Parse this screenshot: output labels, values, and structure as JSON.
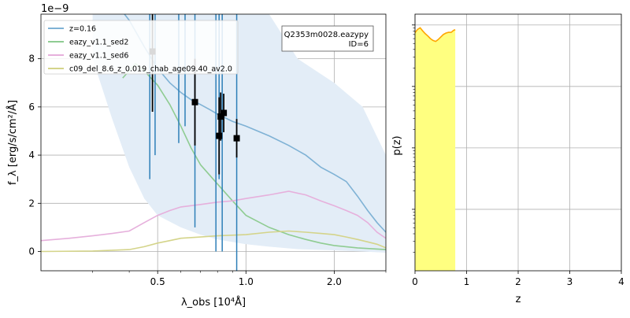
{
  "chart_data": [
    {
      "type": "line",
      "scale_label": "1e−9",
      "xlabel": "λ_obs [10⁴Å]",
      "ylabel": "f_λ [erg/s/cm²/Å]",
      "xscale": "log",
      "xlim": [
        0.2,
        3.0
      ],
      "ylim": [
        -0.8,
        9.85
      ],
      "xticks": [
        0.5,
        1.0,
        2.0
      ],
      "xtick_labels": [
        "0.5",
        "1.0",
        "2.0"
      ],
      "yticks": [
        0,
        2,
        4,
        6,
        8
      ],
      "ytick_labels": [
        "0",
        "2",
        "4",
        "6",
        "8"
      ],
      "grid": true,
      "legend_position": "top-left",
      "annotation": [
        "Q2353m0028.eazypy",
        "ID=6"
      ],
      "annotation_position": "top-right",
      "series": [
        {
          "name": "z=0.16",
          "color": "#7fb2d5",
          "x": [
            0.35,
            0.4,
            0.45,
            0.5,
            0.55,
            0.6,
            0.65,
            0.7,
            0.75,
            0.8,
            0.9,
            1.0,
            1.2,
            1.4,
            1.6,
            1.8,
            2.0,
            2.2,
            2.4,
            2.6,
            2.8,
            3.0
          ],
          "values": [
            10.5,
            9.6,
            8.5,
            7.6,
            7.0,
            6.6,
            6.3,
            6.1,
            5.9,
            5.7,
            5.4,
            5.2,
            4.8,
            4.4,
            4.0,
            3.5,
            3.2,
            2.9,
            2.3,
            1.7,
            1.2,
            0.8
          ]
        },
        {
          "name": "eazy_v1.1_sed2",
          "color": "#8fcc92",
          "x": [
            0.38,
            0.4,
            0.42,
            0.45,
            0.5,
            0.55,
            0.6,
            0.65,
            0.7,
            0.8,
            0.9,
            1.0,
            1.2,
            1.4,
            1.6,
            1.8,
            2.0,
            2.4,
            3.0
          ],
          "values": [
            7.2,
            7.5,
            7.8,
            7.5,
            6.9,
            6.1,
            5.2,
            4.3,
            3.6,
            2.8,
            2.1,
            1.5,
            1.0,
            0.7,
            0.5,
            0.35,
            0.25,
            0.15,
            0.08
          ]
        },
        {
          "name": "eazy_v1.1_sed6",
          "color": "#e6b0dc",
          "x": [
            0.2,
            0.25,
            0.3,
            0.35,
            0.4,
            0.45,
            0.5,
            0.55,
            0.6,
            0.7,
            0.8,
            0.9,
            1.0,
            1.2,
            1.4,
            1.6,
            1.8,
            2.0,
            2.2,
            2.4,
            2.6,
            2.8,
            3.0
          ],
          "values": [
            0.45,
            0.55,
            0.65,
            0.75,
            0.85,
            1.2,
            1.5,
            1.7,
            1.85,
            1.95,
            2.05,
            2.1,
            2.2,
            2.35,
            2.5,
            2.35,
            2.1,
            1.9,
            1.7,
            1.5,
            1.2,
            0.8,
            0.55
          ]
        },
        {
          "name": "c09_del_8.6_z_0.019_chab_age09.40_av2.0",
          "color": "#d4d48a",
          "x": [
            0.2,
            0.3,
            0.4,
            0.45,
            0.5,
            0.55,
            0.6,
            0.7,
            0.8,
            1.0,
            1.2,
            1.4,
            1.6,
            1.8,
            2.0,
            2.2,
            2.4,
            2.6,
            2.8,
            3.0
          ],
          "values": [
            0.0,
            0.02,
            0.08,
            0.2,
            0.35,
            0.45,
            0.55,
            0.6,
            0.65,
            0.7,
            0.8,
            0.85,
            0.8,
            0.75,
            0.7,
            0.6,
            0.5,
            0.4,
            0.3,
            0.15
          ]
        }
      ],
      "uncertainty_band": {
        "color": "#e3edf7",
        "x": [
          0.3,
          0.35,
          0.4,
          0.45,
          0.5,
          0.6,
          0.7,
          0.8,
          1.0,
          1.2,
          1.5,
          2.0,
          2.5,
          3.0
        ],
        "upper": [
          9.85,
          9.85,
          9.85,
          9.85,
          9.85,
          9.85,
          9.85,
          9.85,
          9.85,
          9.85,
          8.0,
          7.0,
          6.0,
          4.0
        ],
        "lower": [
          8.0,
          5.5,
          3.5,
          2.2,
          1.5,
          1.0,
          0.7,
          0.5,
          0.3,
          0.2,
          0.1,
          0.05,
          0.0,
          -0.05
        ]
      },
      "vertical_lines": {
        "color": "#2e7fb8",
        "x": [
          0.47,
          0.49,
          0.59,
          0.62,
          0.67,
          0.79,
          0.81,
          0.83,
          0.93
        ],
        "ymin": [
          3.0,
          4.0,
          4.5,
          5.2,
          1.0,
          0.0,
          3.0,
          0.0,
          -0.8
        ],
        "ymax": [
          9.85,
          9.85,
          9.85,
          9.85,
          9.85,
          9.85,
          9.85,
          9.85,
          9.85
        ]
      },
      "points": {
        "color": "#000000",
        "x": [
          0.48,
          0.67,
          0.81,
          0.82,
          0.84,
          0.93
        ],
        "y": [
          8.3,
          6.2,
          4.8,
          5.6,
          5.75,
          4.7
        ],
        "err": [
          2.5,
          1.8,
          1.6,
          1.0,
          0.8,
          0.8
        ]
      }
    },
    {
      "type": "line",
      "xlabel": "z",
      "ylabel": "p(z)",
      "yscale": "log",
      "xlim": [
        0,
        4
      ],
      "ylim": [
        0.0001,
        1.5
      ],
      "xticks": [
        0,
        1,
        2,
        3,
        4
      ],
      "xtick_labels": [
        "0",
        "1",
        "2",
        "3",
        "4"
      ],
      "yticks": [
        0.001,
        0.01,
        0.1,
        1
      ],
      "grid": true,
      "fill_color": "#ffff80",
      "line_color": "#ffa500",
      "z": [
        0.0,
        0.05,
        0.1,
        0.15,
        0.2,
        0.25,
        0.3,
        0.35,
        0.4,
        0.45,
        0.5,
        0.55,
        0.6,
        0.65,
        0.7,
        0.75,
        0.78
      ],
      "pz": [
        0.75,
        0.85,
        0.9,
        0.8,
        0.72,
        0.66,
        0.6,
        0.56,
        0.54,
        0.58,
        0.64,
        0.7,
        0.74,
        0.76,
        0.76,
        0.82,
        0.84
      ]
    }
  ]
}
